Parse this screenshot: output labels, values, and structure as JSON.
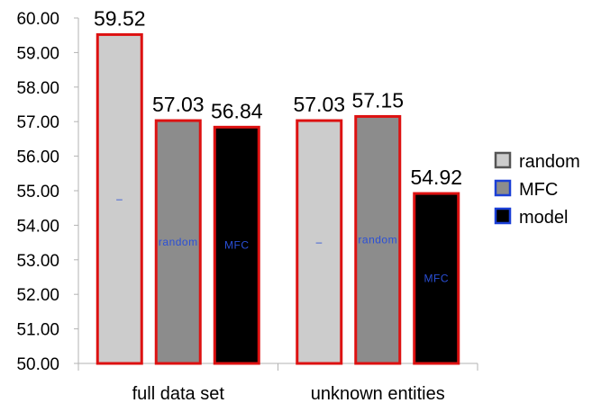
{
  "chart_data": {
    "type": "bar",
    "categories": [
      "full data set",
      "unknown entities"
    ],
    "series": [
      {
        "name": "random",
        "values": [
          59.52,
          57.03
        ],
        "color": "#cccccc"
      },
      {
        "name": "MFC",
        "values": [
          57.03,
          57.15
        ],
        "color": "#8c8c8c"
      },
      {
        "name": "model",
        "values": [
          56.84,
          54.92
        ],
        "color": "#000000"
      }
    ],
    "data_labels": [
      [
        "59.52",
        "57.03",
        "56.84"
      ],
      [
        "57.03",
        "57.15",
        "54.92"
      ]
    ],
    "inner_labels": [
      [
        "–",
        "random",
        "MFC"
      ],
      [
        "–",
        "random",
        "MFC"
      ]
    ],
    "yticks": [
      "50.00",
      "51.00",
      "52.00",
      "53.00",
      "54.00",
      "55.00",
      "56.00",
      "57.00",
      "58.00",
      "59.00",
      "60.00"
    ],
    "ylim": [
      50,
      60
    ],
    "grid": false,
    "legend_position": "right",
    "bar_border_color": "#dd1111",
    "legend_border_colors": [
      "#555555",
      "#1a3fd6",
      "#1a3fd6"
    ],
    "inner_label_color": "#2a4fd6",
    "title": "",
    "xlabel": "",
    "ylabel": ""
  }
}
